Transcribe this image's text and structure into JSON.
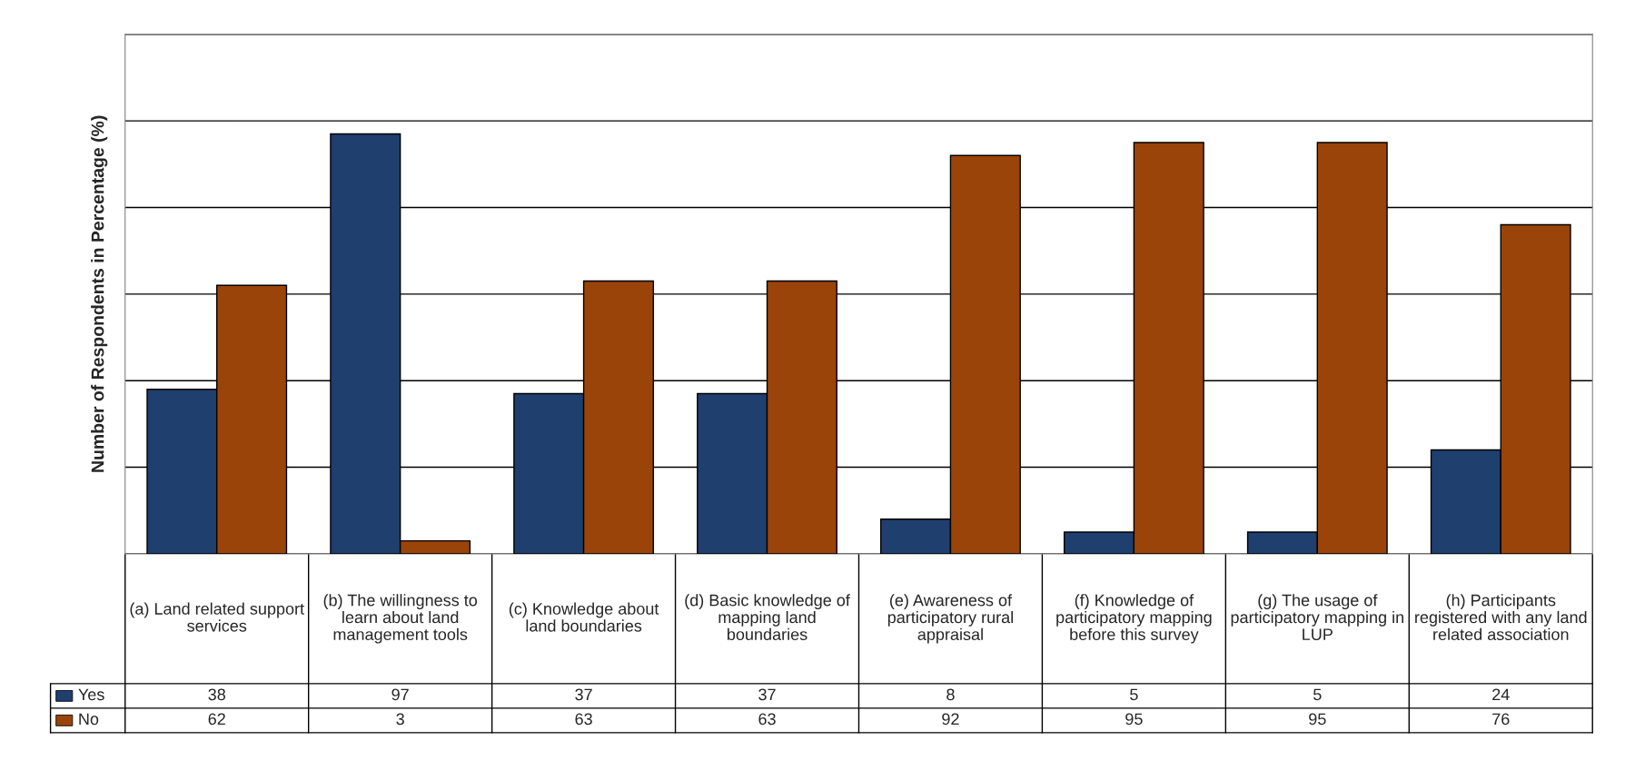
{
  "chart_data": {
    "type": "bar",
    "ylabel": "Number of Respondents in Percentage (%)",
    "categories": [
      "(a) Land related support services",
      "(b) The willingness to learn about land management tools",
      "(c) Knowledge about land boundaries",
      "(d) Basic knowledge of mapping land boundaries",
      "(e) Awareness of participatory rural appraisal",
      "(f) Knowledge of participatory mapping before this survey",
      "(g) The usage of participatory mapping in LUP",
      "(h) Participants registered with any land related association"
    ],
    "series": [
      {
        "name": "Yes",
        "color": "#1f3f6e",
        "values": [
          38,
          97,
          37,
          37,
          8,
          5,
          5,
          24
        ]
      },
      {
        "name": "No",
        "color": "#9a4409",
        "values": [
          62,
          3,
          63,
          63,
          92,
          95,
          95,
          76
        ]
      }
    ],
    "ylim": [
      0,
      120
    ],
    "yticks": [
      {
        "value": 0,
        "label": null
      },
      {
        "value": 20,
        "label": null
      },
      {
        "value": 40,
        "label": null
      },
      {
        "value": 60,
        "label": null
      },
      {
        "value": 80,
        "label": null
      },
      {
        "value": 100,
        "label": null
      },
      {
        "value": 120,
        "label": null
      }
    ],
    "grid": "y",
    "data_labels": true,
    "legend": "bottom",
    "tick_labels": false
  }
}
